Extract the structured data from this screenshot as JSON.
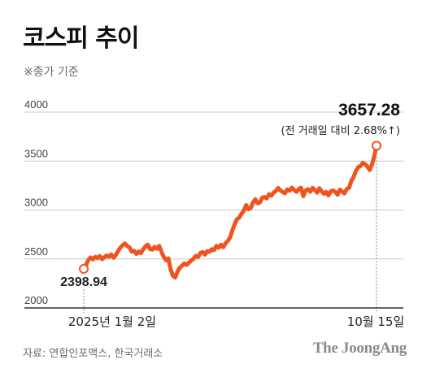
{
  "title": "코스피 추이",
  "subtitle": "※종가 기준",
  "source": "자료: 연합인포맥스, 한국거래소",
  "brand": "The JoongAng",
  "colors": {
    "line": "#f0541e",
    "grid": "#c9c9c9",
    "axis": "#333333",
    "text": "#222222",
    "muted": "#6b6b6b"
  },
  "chart_data": {
    "type": "line",
    "title": "코스피 추이",
    "subtitle": "※종가 기준",
    "xlabel": "",
    "ylabel": "",
    "ylim": [
      2000,
      4000
    ],
    "yticks": [
      2000,
      2500,
      3000,
      3500,
      4000
    ],
    "xtick_labels": [
      "2025년 1월 2일",
      "10월 15일"
    ],
    "grid": true,
    "series": [
      {
        "values": [
          2398.94,
          2441,
          2489,
          2515,
          2496,
          2521,
          2508,
          2530,
          2498,
          2517,
          2536,
          2524,
          2547,
          2512,
          2540,
          2582,
          2616,
          2641,
          2659,
          2632,
          2618,
          2575,
          2583,
          2552,
          2576,
          2559,
          2598,
          2630,
          2646,
          2601,
          2596,
          2625,
          2603,
          2634,
          2573,
          2520,
          2486,
          2506,
          2392,
          2328,
          2310,
          2372,
          2410,
          2432,
          2455,
          2441,
          2463,
          2485,
          2502,
          2532,
          2520,
          2561,
          2570,
          2544,
          2581,
          2573,
          2600,
          2592,
          2634,
          2617,
          2645,
          2620,
          2661,
          2684,
          2721,
          2794,
          2856,
          2905,
          2924,
          2962,
          2994,
          3051,
          3008,
          3021,
          3075,
          3110,
          3070,
          3078,
          3125,
          3133,
          3119,
          3162,
          3145,
          3178,
          3196,
          3225,
          3200,
          3183,
          3171,
          3210,
          3197,
          3229,
          3206,
          3186,
          3214,
          3227,
          3142,
          3201,
          3213,
          3187,
          3226,
          3205,
          3178,
          3223,
          3192,
          3165,
          3184,
          3149,
          3192,
          3200,
          3184,
          3157,
          3208,
          3190,
          3169,
          3216,
          3226,
          3300,
          3338,
          3401,
          3437,
          3450,
          3481,
          3468,
          3445,
          3408,
          3462,
          3549,
          3657.28
        ]
      }
    ],
    "annotations": {
      "start_label": "2398.94",
      "end_value": "3657.28",
      "end_change": "(전 거래일 대비 2.68%↑)"
    }
  }
}
